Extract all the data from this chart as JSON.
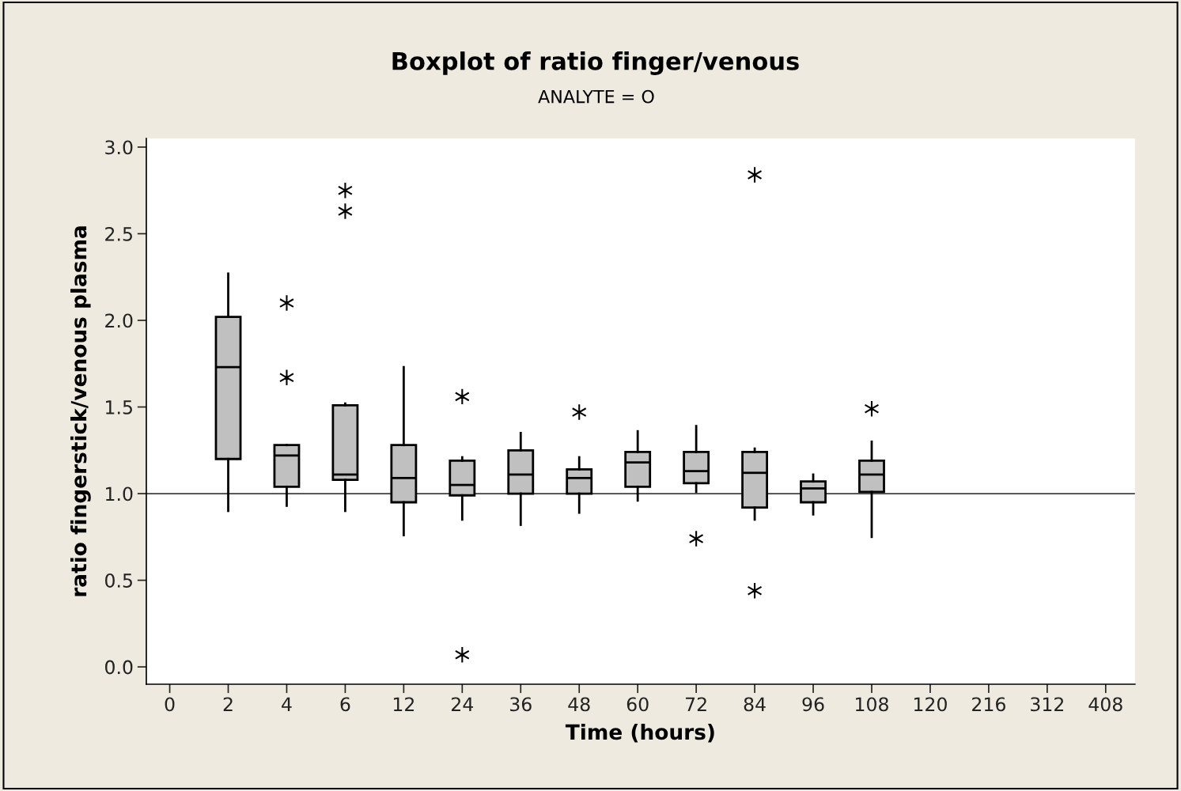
{
  "chart_data": {
    "type": "box",
    "title": "Boxplot of ratio finger/venous",
    "subtitle": "ANALYTE = O",
    "xlabel": "Time (hours)",
    "ylabel": "ratio fingerstick/venous plasma",
    "categories": [
      "0",
      "2",
      "4",
      "6",
      "12",
      "24",
      "36",
      "48",
      "60",
      "72",
      "84",
      "96",
      "108",
      "120",
      "216",
      "312",
      "408"
    ],
    "color": "#c0c0c0",
    "boxes": [
      null,
      {
        "low": 0.9,
        "q1": 1.2,
        "median": 1.73,
        "q3": 2.02,
        "high": 2.27
      },
      {
        "low": 0.93,
        "q1": 1.04,
        "median": 1.22,
        "q3": 1.28,
        "high": 1.28,
        "outliers": [
          1.67,
          2.1
        ]
      },
      {
        "low": 0.9,
        "q1": 1.08,
        "median": 1.11,
        "q3": 1.51,
        "high": 1.52,
        "outliers": [
          2.63,
          2.75
        ]
      },
      {
        "low": 0.76,
        "q1": 0.95,
        "median": 1.09,
        "q3": 1.28,
        "high": 1.73
      },
      {
        "low": 0.85,
        "q1": 0.99,
        "median": 1.05,
        "q3": 1.19,
        "high": 1.21,
        "outliers": [
          0.07,
          1.56
        ]
      },
      {
        "low": 0.82,
        "q1": 1.0,
        "median": 1.11,
        "q3": 1.25,
        "high": 1.35
      },
      {
        "low": 0.89,
        "q1": 1.0,
        "median": 1.09,
        "q3": 1.14,
        "high": 1.21,
        "outliers": [
          1.47
        ]
      },
      {
        "low": 0.96,
        "q1": 1.04,
        "median": 1.18,
        "q3": 1.24,
        "high": 1.36
      },
      {
        "low": 1.01,
        "q1": 1.06,
        "median": 1.13,
        "q3": 1.24,
        "high": 1.39,
        "outliers": [
          0.74
        ]
      },
      {
        "low": 0.85,
        "q1": 0.92,
        "median": 1.12,
        "q3": 1.24,
        "high": 1.26,
        "outliers": [
          0.44,
          2.84
        ]
      },
      {
        "low": 0.88,
        "q1": 0.95,
        "median": 1.03,
        "q3": 1.07,
        "high": 1.11
      },
      {
        "low": 0.75,
        "q1": 1.01,
        "median": 1.11,
        "q3": 1.19,
        "high": 1.3,
        "outliers": [
          1.49
        ]
      },
      null,
      null,
      null,
      null
    ],
    "ylim": [
      -0.1,
      3.05
    ],
    "yticks": [
      {
        "value": 0,
        "label": "0.0"
      },
      {
        "value": 0.5,
        "label": "0.5"
      },
      {
        "value": 1,
        "label": "1.0"
      },
      {
        "value": 1.5,
        "label": "1.5"
      },
      {
        "value": 2,
        "label": "2.0"
      },
      {
        "value": 2.5,
        "label": "2.5"
      },
      {
        "value": 3,
        "label": "3.0"
      }
    ],
    "ref_lines": [
      {
        "axis": "y",
        "value": 1.0,
        "color": "#404040",
        "line_style": "solid"
      }
    ],
    "grid": false
  }
}
